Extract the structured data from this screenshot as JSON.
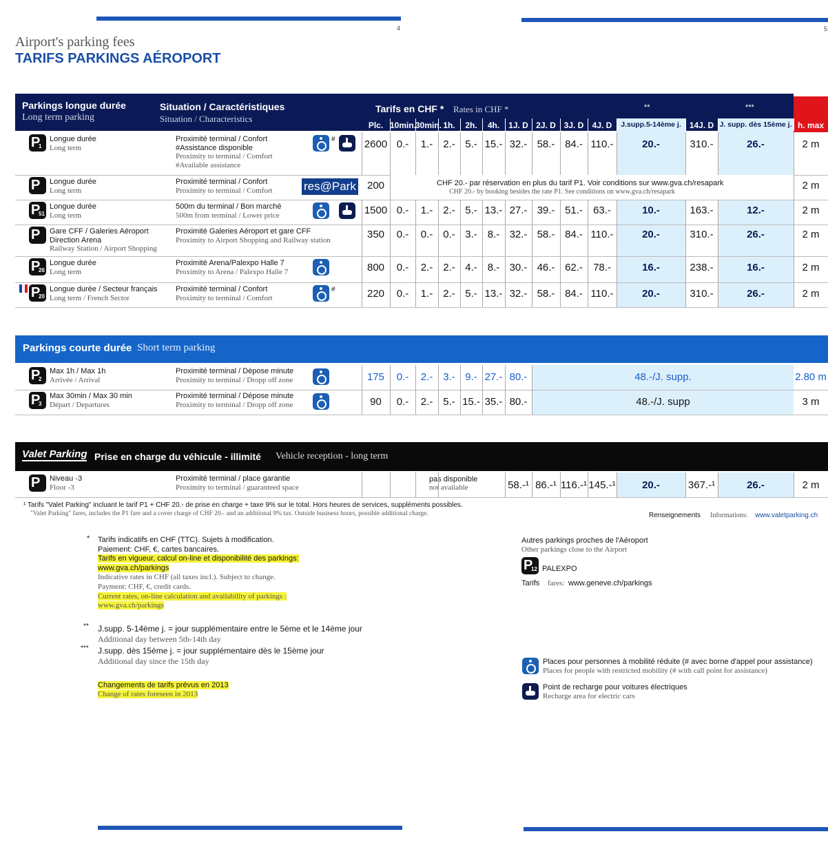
{
  "page_numbers": [
    "4",
    "5"
  ],
  "header": {
    "subtitle": "Airport's parking fees",
    "title": "TARIFS PARKINGS AÉROPORT"
  },
  "long_term": {
    "heading_fr": "Parkings longue durée",
    "heading_en": "Long term parking",
    "situation_fr": "Situation / Caractéristiques",
    "situation_en": "Situation / Characteristics",
    "rates_fr": "Tarifs en CHF *",
    "rates_en": "Rates in CHF *",
    "stars": [
      "**",
      "***"
    ],
    "columns": [
      "Plc.",
      "10min.",
      "30min.",
      "1h.",
      "2h.",
      "4h.",
      "1J. D",
      "2J. D",
      "3J. D",
      "4J. D",
      "J.supp.5-14ème j.",
      "14J. D",
      "J. supp. dès 15ème j.",
      "h. max"
    ],
    "rows": [
      {
        "sign": "P",
        "number": "1",
        "name": {
          "fr": [
            "Longue durée"
          ],
          "en": [
            "Long term"
          ]
        },
        "situation": {
          "fr": [
            "Proximité terminal / Confort",
            "#Assistance disponible"
          ],
          "en": [
            "Proximity to terminal / Comfort",
            "#Available assistance"
          ]
        },
        "mark": "#",
        "cells": [
          "2600",
          "0.-",
          "1.-",
          "2.-",
          "5.-",
          "15.-",
          "32.-",
          "58.-",
          "84.-",
          "110.-",
          "20.-",
          "310.-",
          "26.-",
          "2 m"
        ]
      },
      {
        "sign": "P",
        "name": {
          "fr": [
            "Longue durée"
          ],
          "en": [
            "Long term"
          ]
        },
        "situation": {
          "fr": [
            "Proximité terminal / Confort"
          ],
          "en": [
            "Proximity to terminal / Comfort"
          ]
        },
        "logo": "res@Park",
        "note": [
          "CHF 20.- par réservation en plus du tarif P1. Voir conditions sur www.gva.ch/resapark",
          "CHF 20.- by booking besides the rate P1. See conditions on www.gva.ch/resapark"
        ],
        "cells": [
          "200",
          "2 m"
        ]
      },
      {
        "sign": "P",
        "number": "51",
        "name": {
          "fr": [
            "Longue durée"
          ],
          "en": [
            "Long term"
          ]
        },
        "situation": {
          "fr": [
            "500m du terminal / Bon marché"
          ],
          "en": [
            "500m from terminal / Lower price"
          ]
        },
        "cells": [
          "1500",
          "0.-",
          "1.-",
          "2.-",
          "5.-",
          "13.-",
          "27.-",
          "39.-",
          "51.-",
          "63.-",
          "10.-",
          "163.-",
          "12.-",
          "2 m"
        ]
      },
      {
        "sign": "P",
        "name": {
          "fr": [
            "Gare CFF / Galeries Aéroport",
            "Direction Arena"
          ],
          "en": [
            "Railway Station / Airport Shopping"
          ]
        },
        "situation": {
          "fr": [
            "Proximité Galeries Aéroport et gare CFF"
          ],
          "en": [
            "Proximity to Airport Shopping and Railway station"
          ]
        },
        "cells": [
          "350",
          "0.-",
          "0.-",
          "0.-",
          "3.-",
          "8.-",
          "32.-",
          "58.-",
          "84.-",
          "110.-",
          "20.-",
          "310.-",
          "26.-",
          "2 m"
        ]
      },
      {
        "sign": "P",
        "number": "26",
        "name": {
          "fr": [
            "Longue durée"
          ],
          "en": [
            "Long term"
          ]
        },
        "situation": {
          "fr": [
            "Proximité Arena/Palexpo Halle 7"
          ],
          "en": [
            "Proximity to Arena / Palexpo Halle 7"
          ]
        },
        "cells": [
          "800",
          "0.-",
          "2.-",
          "2.-",
          "4.-",
          "8.-",
          "30.-",
          "46.-",
          "62.-",
          "78.-",
          "16.-",
          "238.-",
          "16.-",
          "2 m"
        ]
      },
      {
        "sign": "P",
        "number": "20",
        "name": {
          "fr": [
            "Longue durée / Secteur français"
          ],
          "en": [
            "Long term / French Sector"
          ]
        },
        "situation": {
          "fr": [
            "Proximité terminal / Confort"
          ],
          "en": [
            "Proximity to terminal / Comfort"
          ]
        },
        "mark": "#",
        "cells": [
          "220",
          "0.-",
          "1.-",
          "2.-",
          "5.-",
          "13.-",
          "32.-",
          "58.-",
          "84.-",
          "110.-",
          "20.-",
          "310.-",
          "26.-",
          "2 m"
        ]
      }
    ]
  },
  "short_term": {
    "heading_fr": "Parkings courte durée",
    "heading_en": "Short term parking",
    "rows": [
      {
        "sign": "P",
        "number": "2",
        "name": {
          "fr": [
            "Max 1h / Max 1h"
          ],
          "en": [
            "Arrivée / Arrival"
          ]
        },
        "situation": {
          "fr": [
            "Proximité terminal / Dépose minute"
          ],
          "en": [
            "Proximity to terminal / Dropp off zone"
          ]
        },
        "cells": [
          "175",
          "0.-",
          "2.-",
          "3.-",
          "9.-",
          "27.-",
          "80.-"
        ],
        "supp": "48.-/J. supp.",
        "max": "2.80 m"
      },
      {
        "sign": "P",
        "number": "3",
        "name": {
          "fr": [
            "Max 30min / Max 30 min"
          ],
          "en": [
            "Départ / Departures"
          ]
        },
        "situation": {
          "fr": [
            "Proximité terminal / Dépose minute"
          ],
          "en": [
            "Proximity to terminal / Dropp off zone"
          ]
        },
        "cells": [
          "90",
          "0.-",
          "2.-",
          "5.-",
          "15.-",
          "35.-",
          "80.-"
        ],
        "supp": "48.-/J. supp",
        "max": "3 m"
      }
    ]
  },
  "valet": {
    "logo": "Valet Parking",
    "heading_fr": "Prise en charge du véhicule - illimité",
    "heading_en": "Vehicle reception - long term",
    "row": {
      "sign": "P",
      "name": {
        "fr": [
          "Niveau -3"
        ],
        "en": [
          "Floor -3"
        ]
      },
      "situation": {
        "fr": [
          "Proximité terminal / place garantie"
        ],
        "en": [
          "Proximity to terminal / guaranteed space"
        ]
      },
      "unavailable": [
        "pas disponible",
        "not available"
      ],
      "cells": [
        "58.-¹",
        "86.-¹",
        "116.-¹",
        "145.-¹",
        "20.-",
        "367.-¹",
        "26.-",
        "2 m"
      ]
    },
    "notes": [
      "¹  Tarifs \"Valet Parking\" incluant le tarif P1 + CHF 20.- de prise en charge + taxe 9% sur le total. Hors heures de services, suppléments possibles.",
      "\"Valet Parking\" fares, includes the P1 fare and a cover charge of CHF 20.- and an additional 9% tax. Outside business hours, possible additional charge."
    ],
    "info_label": "Renseignements",
    "info_en": "Informations:",
    "info_link": "www.valetparking.ch"
  },
  "footnotes": {
    "star1": "*",
    "block1": [
      "Tarifs indicatifs en CHF (TTC). Sujets à modification.",
      "Paiement: CHF, €, cartes bancaires.",
      "Tarifs en vigueur, calcul on-line et disponibilité des parkings:",
      "www.gva.ch/parkings",
      "Indicative rates in CHF (all taxes incl.). Subject to change.",
      "Payment: CHF, €, credit cards.",
      "Current rates, on-line calculation and availability of parkings :",
      "www.gva.ch/parkings"
    ],
    "star2": "**",
    "block2": [
      "J.supp. 5-14ème j. = jour supplémentaire entre le 5ème et le 14ème jour",
      "Additional day between 5th-14th day"
    ],
    "star3": "***",
    "block3": [
      "J.supp. dès 15ème j. = jour supplémentaire dès le 15ème jour",
      "Additional day since the 15th day"
    ],
    "changes": [
      "Changements de tarifs prévus en 2013",
      "Change of rates foreseen in 2013"
    ]
  },
  "other_parkings": {
    "title_fr": "Autres parkings proches de l'Aéroport",
    "title_en": "Other parkings close to the Airport",
    "sign": "P",
    "number": "12",
    "name": "PALEXPO",
    "fares_fr": "Tarifs",
    "fares_en": "fares:",
    "link": "www.geneve.ch/parkings"
  },
  "legend": [
    {
      "fr": "Places pour personnes à mobilité réduite (# avec borne d'appel pour assistance)",
      "en": "Places for people with restricted mobility (# with call point for assistance)"
    },
    {
      "fr": "Point de recharge pour voitures électriques",
      "en": "Recharge area for electric cars"
    }
  ]
}
